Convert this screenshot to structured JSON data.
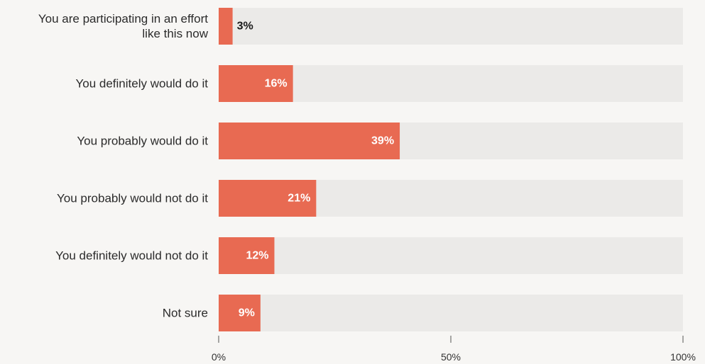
{
  "chart_data": {
    "type": "bar",
    "orientation": "horizontal",
    "categories": [
      [
        "You are participating in an effort",
        "like this now"
      ],
      [
        "You definitely would do it"
      ],
      [
        "You probably would do it"
      ],
      [
        "You probably would not do it"
      ],
      [
        "You definitely would not do it"
      ],
      [
        "Not sure"
      ]
    ],
    "values": [
      3,
      16,
      39,
      21,
      12,
      9
    ],
    "value_labels": [
      "3%",
      "16%",
      "39%",
      "21%",
      "12%",
      "9%"
    ],
    "xlim": [
      0,
      100
    ],
    "xticks": [
      0,
      50,
      100
    ],
    "xtick_labels": [
      "0%",
      "50%",
      "100%"
    ],
    "grid": false,
    "colors": {
      "bar": "#e86a52",
      "track": "#ebeae8",
      "label_inside": "#ffffff",
      "label_outside": "#1a1a1a",
      "background": "#f7f6f4"
    }
  }
}
